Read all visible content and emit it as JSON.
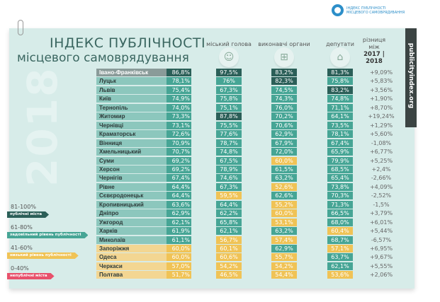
{
  "logo": {
    "line1": "ІНДЕКС ПУБЛІЧНОСТІ",
    "line2": "МІСЦЕВОГО САМОВРЯДУВАННЯ"
  },
  "title": {
    "line1": "ІНДЕКС ПУБЛІЧНОСТІ",
    "line2": "місцевого самоврядування",
    "year": "2018"
  },
  "site": "publicityindex.org",
  "columns": {
    "mayor": "міський голова",
    "exec": "виконавчі органи",
    "deputies": "депутати",
    "diff_line1": "різниця",
    "diff_line2": "між",
    "diff_years": "2017 | 2018"
  },
  "icons": {
    "mayor": "person-icon",
    "exec": "org-chart-icon",
    "deputies": "building-icon"
  },
  "colors": {
    "high": "#2b5f58",
    "good": "#46a595",
    "low": "#f0c356",
    "bad": "#e8516b",
    "name_good": "#8cc7bd",
    "name_low": "#f3d692",
    "name_top": "#8a9b99"
  },
  "legend": [
    {
      "range": "81-100%",
      "label": "публічні міста",
      "level": "high"
    },
    {
      "range": "61-80%",
      "label": "задовільний рівень публічності",
      "level": "good"
    },
    {
      "range": "41-60%",
      "label": "низький рівень публічності",
      "level": "low"
    },
    {
      "range": "0-40%",
      "label": "непублічні міста",
      "level": "bad"
    }
  ],
  "rows": [
    {
      "city": "Івано-Франківськ",
      "total": "86,8%",
      "mayor": "97,5%",
      "exec": "83,2%",
      "deputies": "81,3%",
      "diff": "+9,09%"
    },
    {
      "city": "Луцьк",
      "total": "78,1%",
      "mayor": "76%",
      "exec": "82,3%",
      "deputies": "75,8%",
      "diff": "+5,83%"
    },
    {
      "city": "Львів",
      "total": "75,4%",
      "mayor": "67,3%",
      "exec": "74,5%",
      "deputies": "83,2%",
      "diff": "+3,56%"
    },
    {
      "city": "Київ",
      "total": "74,9%",
      "mayor": "75,8%",
      "exec": "74,3%",
      "deputies": "74,8%",
      "diff": "+1,90%"
    },
    {
      "city": "Тернопіль",
      "total": "74,0%",
      "mayor": "75,1%",
      "exec": "76,0%",
      "deputies": "71,1%",
      "diff": "+8,70%"
    },
    {
      "city": "Житомир",
      "total": "73,3%",
      "mayor": "87,8%",
      "exec": "70,2%",
      "deputies": "64,1%",
      "diff": "+19,24%"
    },
    {
      "city": "Чернівці",
      "total": "73,1%",
      "mayor": "75,5%",
      "exec": "70,6%",
      "deputies": "73,5%",
      "diff": "+1,29%"
    },
    {
      "city": "Краматорськ",
      "total": "72,6%",
      "mayor": "77,6%",
      "exec": "62,9%",
      "deputies": "78,1%",
      "diff": "+5,60%"
    },
    {
      "city": "Вінниця",
      "total": "70,9%",
      "mayor": "78,7%",
      "exec": "67,9%",
      "deputies": "67,4%",
      "diff": "-1,08%"
    },
    {
      "city": "Хмельницький",
      "total": "70,7%",
      "mayor": "74,8%",
      "exec": "72,0%",
      "deputies": "65,9%",
      "diff": "+6,77%"
    },
    {
      "city": "Суми",
      "total": "69,2%",
      "mayor": "67,5%",
      "exec": "60,0%",
      "deputies": "79,9%",
      "diff": "+5,25%"
    },
    {
      "city": "Херсон",
      "total": "69,2%",
      "mayor": "78,9%",
      "exec": "61,5%",
      "deputies": "68,5%",
      "diff": "+2,4%"
    },
    {
      "city": "Чернігів",
      "total": "67,4%",
      "mayor": "74,6%",
      "exec": "63,2%",
      "deputies": "65,4%",
      "diff": "-2,66%"
    },
    {
      "city": "Рівне",
      "total": "64,4%",
      "mayor": "67,3%",
      "exec": "52,6%",
      "deputies": "73,8%",
      "diff": "+4,09%"
    },
    {
      "city": "Сєвєродонецьк",
      "total": "64,4%",
      "mayor": "59,5%",
      "exec": "62,6%",
      "deputies": "70,3%",
      "diff": "-2,52%"
    },
    {
      "city": "Кропивницький",
      "total": "63,6%",
      "mayor": "64,4%",
      "exec": "55,2%",
      "deputies": "71,3%",
      "diff": "-1,5%"
    },
    {
      "city": "Дніпро",
      "total": "62,9%",
      "mayor": "62,2%",
      "exec": "60,0%",
      "deputies": "66,5%",
      "diff": "+3,79%"
    },
    {
      "city": "Ужгород",
      "total": "62,1%",
      "mayor": "65,8%",
      "exec": "53,1%",
      "deputies": "68,0%",
      "diff": "+6,01%"
    },
    {
      "city": "Харків",
      "total": "61,9%",
      "mayor": "62,1%",
      "exec": "63,2%",
      "deputies": "60,4%",
      "diff": "+5,44%"
    },
    {
      "city": "Миколаїв",
      "total": "61,1%",
      "mayor": "56,7%",
      "exec": "57,4%",
      "deputies": "68,7%",
      "diff": "-6,57%"
    },
    {
      "city": "Запоріжжя",
      "total": "60,0%",
      "mayor": "60,1%",
      "exec": "62,9%",
      "deputies": "57,1%",
      "diff": "+6,95%"
    },
    {
      "city": "Одеса",
      "total": "60,0%",
      "mayor": "60,6%",
      "exec": "55,7%",
      "deputies": "63,7%",
      "diff": "+9,67%"
    },
    {
      "city": "Черкаси",
      "total": "57,0%",
      "mayor": "54,2%",
      "exec": "54,2%",
      "deputies": "62,1%",
      "diff": "+5,55%"
    },
    {
      "city": "Полтава",
      "total": "51,7%",
      "mayor": "46,5%",
      "exec": "54,4%",
      "deputies": "53,6%",
      "diff": "+2,06%"
    }
  ]
}
